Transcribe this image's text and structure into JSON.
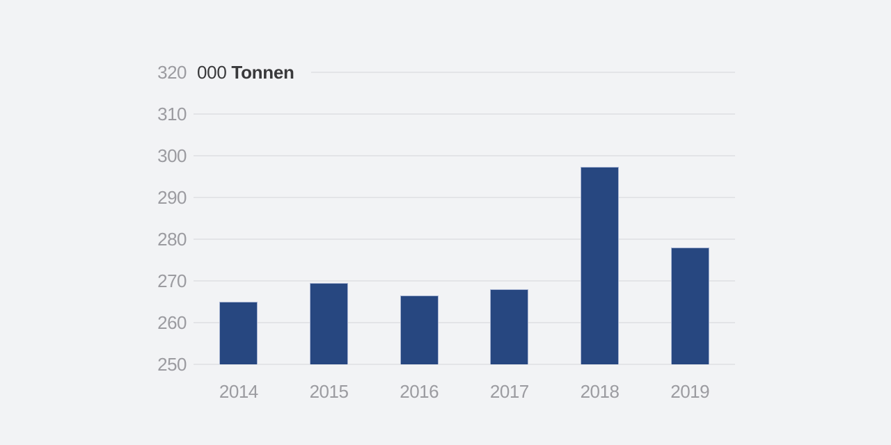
{
  "chart_data": {
    "type": "bar",
    "title": "000 Tonnen",
    "title_prefix": "000",
    "title_bold": "Tonnen",
    "categories": [
      "2014",
      "2015",
      "2016",
      "2017",
      "2018",
      "2019"
    ],
    "values": [
      265,
      269.5,
      266.5,
      268,
      297.3,
      278
    ],
    "xlabel": "",
    "ylabel": "000 Tonnen",
    "ylim": [
      250,
      320
    ],
    "yticks": [
      250,
      260,
      270,
      280,
      290,
      300,
      310,
      320
    ],
    "grid": true,
    "legend": "none",
    "colors": {
      "background": "#f2f3f5",
      "bar_fill": "#274780",
      "bar_border": "#a9b6d4",
      "gridline": "#e3e4e7",
      "axis_label": "#9b9ba0",
      "title_text": "#39393b"
    }
  }
}
